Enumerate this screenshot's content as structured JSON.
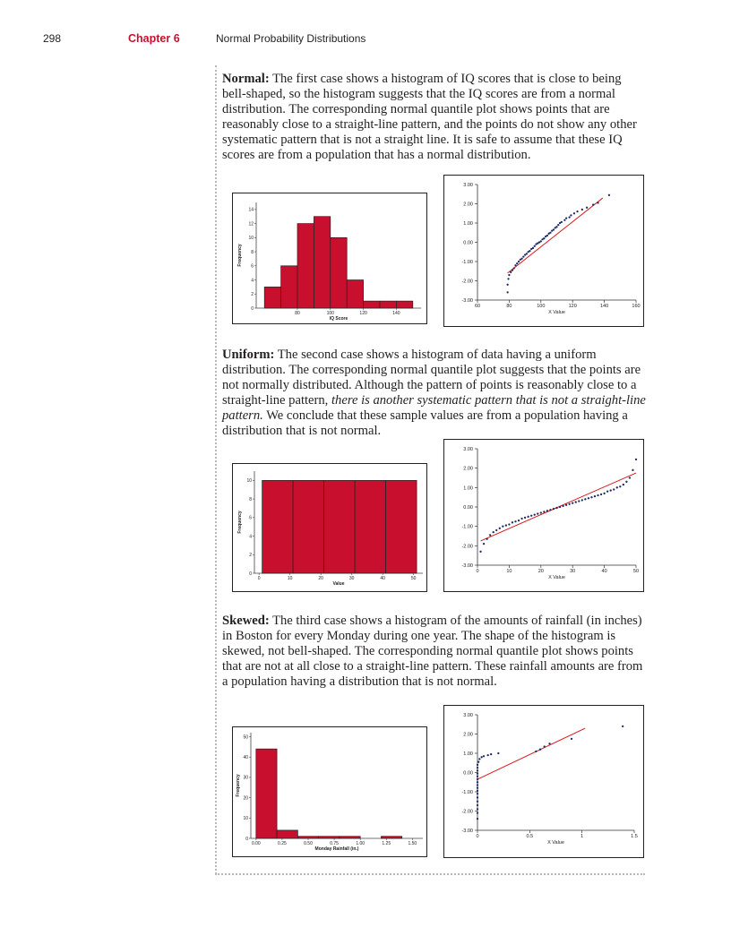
{
  "header": {
    "page_number": "298",
    "chapter": "Chapter 6",
    "chapter_title": "Normal Probability Distributions"
  },
  "sections": [
    {
      "lead": "Normal:",
      "text": " The first case shows a histogram of IQ scores that is close to being bell-shaped, so the histogram suggests that the IQ scores are from a normal distribution. The corresponding normal quantile plot shows points that are reasonably close to a straight-line pattern, and the points do not show any other systematic pattern that is not a straight line. It is safe to assume that these IQ scores are from a population that has a normal distribution."
    },
    {
      "lead": "Uniform:",
      "text_a": " The second case shows a histogram of data having a uniform distribution. The corresponding normal quantile plot suggests that the points are not normally distributed. Although the pattern of points is reasonably close to a straight-line pattern, ",
      "emphasis": "there is another systematic pattern that is not a straight-line pattern.",
      "text_b": " We conclude that these sample values are from a population having a distribution that is not normal."
    },
    {
      "lead": "Skewed:",
      "text": " The third case shows a histogram of the amounts of rainfall (in inches) in Boston for every Monday during one year. The shape of the histogram is skewed, not bell-shaped. The corresponding normal quantile plot shows points that are not at all close to a straight-line pattern. These rainfall amounts are from a population having a distribution that is not normal."
    }
  ],
  "colors": {
    "bar": "#c8102e",
    "point": "#1f2a5e",
    "fit_line": "#d7191c",
    "chapter": "#c8102e"
  },
  "chart_data": [
    {
      "id": "hist_normal",
      "type": "bar",
      "xlabel": "IQ Score",
      "ylabel": "Frequency",
      "xlim": [
        55,
        155
      ],
      "ylim": [
        0,
        15
      ],
      "xticks": [
        80,
        100,
        120,
        140
      ],
      "yticks": [
        0,
        2,
        4,
        6,
        8,
        10,
        12,
        14
      ],
      "bin_edges": [
        60,
        70,
        80,
        90,
        100,
        110,
        120,
        130,
        140,
        150
      ],
      "values": [
        3,
        6,
        12,
        13,
        10,
        4,
        1,
        1,
        1
      ]
    },
    {
      "id": "qq_normal",
      "type": "scatter",
      "xlabel": "X Value",
      "xlim": [
        60,
        160
      ],
      "ylim": [
        -3,
        3
      ],
      "xticks": [
        60,
        80,
        100,
        120,
        140,
        160
      ],
      "yticks": [
        "3.00",
        "2.00",
        "1.00",
        "0.00",
        "-1.00",
        "-2.00",
        "-3.00"
      ],
      "fit_line": [
        [
          79,
          -1.6
        ],
        [
          139,
          2.3
        ]
      ],
      "points": [
        [
          79,
          -2.6
        ],
        [
          79,
          -2.2
        ],
        [
          79.5,
          -1.9
        ],
        [
          80,
          -1.7
        ],
        [
          81,
          -1.55
        ],
        [
          82,
          -1.45
        ],
        [
          83,
          -1.35
        ],
        [
          84,
          -1.2
        ],
        [
          85,
          -1.1
        ],
        [
          86,
          -1.0
        ],
        [
          87,
          -0.9
        ],
        [
          88,
          -0.85
        ],
        [
          89,
          -0.75
        ],
        [
          90,
          -0.65
        ],
        [
          91,
          -0.6
        ],
        [
          92,
          -0.5
        ],
        [
          93,
          -0.45
        ],
        [
          94,
          -0.35
        ],
        [
          95,
          -0.3
        ],
        [
          96,
          -0.2
        ],
        [
          97,
          -0.1
        ],
        [
          98,
          -0.05
        ],
        [
          99,
          0.0
        ],
        [
          100,
          0.05
        ],
        [
          101,
          0.15
        ],
        [
          102,
          0.2
        ],
        [
          103,
          0.3
        ],
        [
          104,
          0.35
        ],
        [
          105,
          0.45
        ],
        [
          106,
          0.5
        ],
        [
          107,
          0.6
        ],
        [
          108,
          0.65
        ],
        [
          109,
          0.75
        ],
        [
          110,
          0.8
        ],
        [
          111,
          0.9
        ],
        [
          112,
          1.0
        ],
        [
          113,
          1.05
        ],
        [
          115,
          1.15
        ],
        [
          116,
          1.25
        ],
        [
          118,
          1.3
        ],
        [
          119,
          1.4
        ],
        [
          121,
          1.5
        ],
        [
          123,
          1.6
        ],
        [
          126,
          1.7
        ],
        [
          129,
          1.8
        ],
        [
          133,
          1.95
        ],
        [
          136,
          2.05
        ],
        [
          143,
          2.45
        ]
      ]
    },
    {
      "id": "hist_uniform",
      "type": "bar",
      "xlabel": "Value",
      "ylabel": "Frequency",
      "xlim": [
        -1.5,
        53
      ],
      "ylim": [
        0,
        11
      ],
      "xticks": [
        0,
        10,
        20,
        30,
        40,
        50
      ],
      "yticks": [
        0,
        2,
        4,
        6,
        8,
        10
      ],
      "bin_edges": [
        1,
        11,
        21,
        31,
        41,
        51
      ],
      "values": [
        10,
        10,
        10,
        10,
        10
      ]
    },
    {
      "id": "qq_uniform",
      "type": "scatter",
      "xlabel": "X Value",
      "xlim": [
        0,
        50
      ],
      "ylim": [
        -3,
        3
      ],
      "xticks": [
        0,
        10,
        20,
        30,
        40,
        50
      ],
      "yticks": [
        "3.00",
        "2.00",
        "1.00",
        "0.00",
        "-1.00",
        "-2.00",
        "-3.00"
      ],
      "fit_line": [
        [
          1,
          -1.75
        ],
        [
          50,
          1.75
        ]
      ],
      "points": [
        [
          1,
          -2.3
        ],
        [
          2,
          -1.9
        ],
        [
          3,
          -1.65
        ],
        [
          4,
          -1.45
        ],
        [
          5,
          -1.3
        ],
        [
          6,
          -1.2
        ],
        [
          7,
          -1.1
        ],
        [
          8,
          -1.0
        ],
        [
          9,
          -0.95
        ],
        [
          10,
          -0.9
        ],
        [
          11,
          -0.8
        ],
        [
          12,
          -0.75
        ],
        [
          13,
          -0.7
        ],
        [
          14,
          -0.6
        ],
        [
          15,
          -0.55
        ],
        [
          16,
          -0.5
        ],
        [
          17,
          -0.45
        ],
        [
          18,
          -0.4
        ],
        [
          19,
          -0.35
        ],
        [
          20,
          -0.3
        ],
        [
          21,
          -0.25
        ],
        [
          22,
          -0.2
        ],
        [
          23,
          -0.15
        ],
        [
          24,
          -0.1
        ],
        [
          25,
          -0.05
        ],
        [
          26,
          0.0
        ],
        [
          27,
          0.05
        ],
        [
          28,
          0.1
        ],
        [
          29,
          0.15
        ],
        [
          30,
          0.2
        ],
        [
          31,
          0.25
        ],
        [
          32,
          0.3
        ],
        [
          33,
          0.35
        ],
        [
          34,
          0.4
        ],
        [
          35,
          0.45
        ],
        [
          36,
          0.5
        ],
        [
          37,
          0.55
        ],
        [
          38,
          0.6
        ],
        [
          39,
          0.65
        ],
        [
          40,
          0.7
        ],
        [
          41,
          0.8
        ],
        [
          42,
          0.85
        ],
        [
          43,
          0.9
        ],
        [
          44,
          1.0
        ],
        [
          45,
          1.05
        ],
        [
          46,
          1.15
        ],
        [
          47,
          1.3
        ],
        [
          48,
          1.5
        ],
        [
          49,
          1.9
        ],
        [
          50,
          2.45
        ]
      ]
    },
    {
      "id": "hist_skewed",
      "type": "bar",
      "xlabel": "Monday Rainfall (in.)",
      "ylabel": "Frequency",
      "xlim": [
        -0.05,
        1.6
      ],
      "ylim": [
        0,
        52
      ],
      "xticks": [
        "0.00",
        "0.25",
        "0.50",
        "0.75",
        "1.00",
        "1.25",
        "1.50"
      ],
      "yticks": [
        0,
        10,
        20,
        30,
        40,
        50
      ],
      "bin_edges": [
        0,
        0.2,
        0.4,
        0.6,
        0.8,
        1.0,
        1.2,
        1.4,
        1.6
      ],
      "values": [
        44,
        4,
        1,
        1,
        1,
        0,
        1,
        0
      ]
    },
    {
      "id": "qq_skewed",
      "type": "scatter",
      "xlabel": "X Value",
      "xlim": [
        0,
        1.5
      ],
      "ylim": [
        -3,
        3
      ],
      "xticks": [
        "0",
        "0.5",
        "1",
        "1.5"
      ],
      "yticks": [
        "3.00",
        "2.00",
        "1.00",
        "0.00",
        "-1.00",
        "-2.00",
        "-3.00"
      ],
      "fit_line": [
        [
          0,
          -0.35
        ],
        [
          1.03,
          2.3
        ]
      ],
      "points": [
        [
          0,
          -2.4
        ],
        [
          0,
          -2.1
        ],
        [
          0,
          -1.9
        ],
        [
          0,
          -1.7
        ],
        [
          0,
          -1.5
        ],
        [
          0,
          -1.3
        ],
        [
          0,
          -1.1
        ],
        [
          0,
          -0.95
        ],
        [
          0,
          -0.8
        ],
        [
          0,
          -0.65
        ],
        [
          0,
          -0.5
        ],
        [
          0,
          -0.35
        ],
        [
          0,
          -0.2
        ],
        [
          0,
          -0.05
        ],
        [
          0,
          0.1
        ],
        [
          0,
          0.25
        ],
        [
          0,
          0.4
        ],
        [
          0.01,
          0.55
        ],
        [
          0.02,
          0.7
        ],
        [
          0.04,
          0.8
        ],
        [
          0.06,
          0.85
        ],
        [
          0.1,
          0.9
        ],
        [
          0.13,
          0.95
        ],
        [
          0.2,
          1.0
        ],
        [
          0.56,
          1.1
        ],
        [
          0.6,
          1.2
        ],
        [
          0.64,
          1.35
        ],
        [
          0.69,
          1.5
        ],
        [
          0.9,
          1.75
        ],
        [
          1.39,
          2.4
        ]
      ]
    }
  ]
}
